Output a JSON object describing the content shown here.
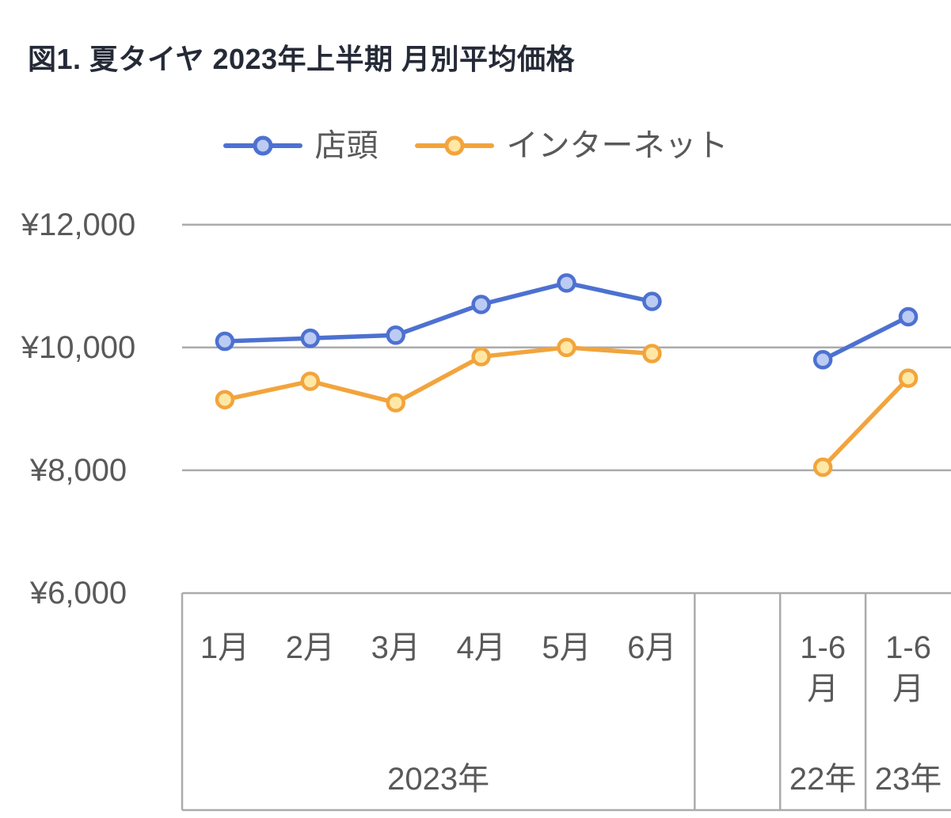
{
  "title": "図1. 夏タイヤ 2023年上半期 月別平均価格",
  "legend": {
    "items": [
      {
        "label": "店頭"
      },
      {
        "label": "インターネット"
      }
    ]
  },
  "chart_data": {
    "type": "line",
    "title": "図1. 夏タイヤ 2023年上半期 月別平均価格",
    "categories": [
      "1月",
      "2月",
      "3月",
      "4月",
      "5月",
      "6月",
      "",
      "1-6\n月",
      "1-6\n月"
    ],
    "category_groups": [
      {
        "label": "2023年",
        "start": 0,
        "end": 5
      },
      {
        "label": "",
        "start": 6,
        "end": 6
      },
      {
        "label": "22年",
        "start": 7,
        "end": 7
      },
      {
        "label": "23年",
        "start": 8,
        "end": 8
      }
    ],
    "y_ticks": [
      {
        "label": "¥12,000",
        "value": 12000
      },
      {
        "label": "¥10,000",
        "value": 10000
      },
      {
        "label": "¥8,000",
        "value": 8000
      },
      {
        "label": "¥6,000",
        "value": 6000
      }
    ],
    "ylim": [
      6000,
      12000
    ],
    "grid": true,
    "legend_position": "top",
    "series": [
      {
        "name": "店頭",
        "line_color": "#4d71d1",
        "marker_fill": "#bccbf2",
        "values": [
          10100,
          10150,
          10200,
          10700,
          11050,
          10750,
          null,
          9800,
          10500
        ]
      },
      {
        "name": "インターネット",
        "line_color": "#f2a43c",
        "marker_fill": "#ffe8a6",
        "values": [
          9150,
          9450,
          9100,
          9850,
          10000,
          9900,
          null,
          8050,
          9500
        ]
      }
    ],
    "axis_color": "#ababab",
    "text_color": "#595959"
  }
}
